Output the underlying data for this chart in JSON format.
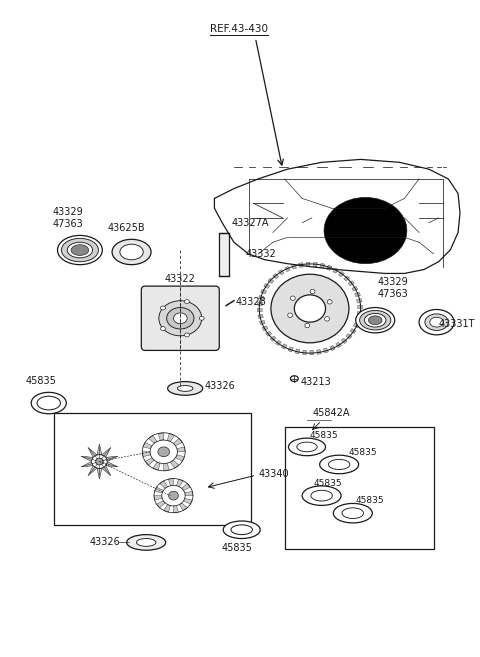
{
  "bg_color": "#ffffff",
  "line_color": "#1a1a1a",
  "labels": {
    "ref": "REF.43-430",
    "p43327A": "43327A",
    "p43625B": "43625B",
    "p43329_left": "43329\n47363",
    "p43322": "43322",
    "p43328": "43328",
    "p43332": "43332",
    "p43329_right": "43329\n47363",
    "p43331T": "43331T",
    "p43213": "43213",
    "p45842A": "45842A",
    "p43326_mid": "43326",
    "p43326_bot": "43326",
    "p45835_left": "45835",
    "p45835_mid": "45835",
    "p45835_b1": "45835",
    "p45835_b2": "45835",
    "p45835_b3": "45835",
    "p45835_b4": "45835",
    "p43340": "43340"
  },
  "font_size": 7.0,
  "line_width": 0.9
}
